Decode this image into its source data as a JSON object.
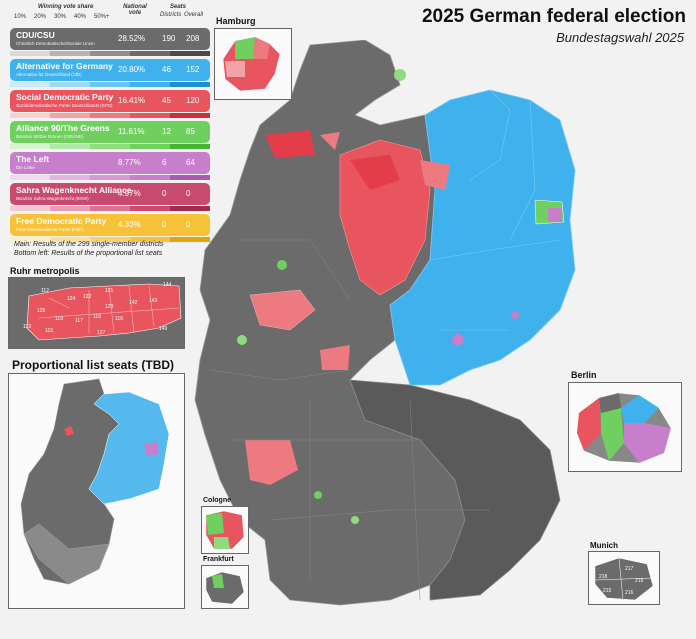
{
  "title": "2025 German federal election",
  "subtitle": "Bundestagswahl 2025",
  "legend": {
    "header_share": "Winning vote share",
    "header_national": "National vote",
    "header_seats": "Seats",
    "header_districts": "Districts",
    "header_overall": "Overall",
    "scale": [
      "10%",
      "20%",
      "30%",
      "40%",
      "50%+"
    ],
    "parties": [
      {
        "name": "CDU/CSU",
        "local": "Christlich Demokratische/Soziale Union",
        "share": "28.52%",
        "districts": "190",
        "overall": "208",
        "color": "#6b6b6b",
        "shades": [
          "#d9d9d9",
          "#b5b5b5",
          "#8f8f8f",
          "#6b6b6b",
          "#4a4a4a"
        ]
      },
      {
        "name": "Alternative for Germany",
        "local": "Alternative für Deutschland (AfD)",
        "share": "20.80%",
        "districts": "46",
        "overall": "152",
        "color": "#3fb1ec",
        "shades": [
          "#cdeafb",
          "#9fd7f6",
          "#6fc3f1",
          "#3fb1ec",
          "#1e90d0"
        ]
      },
      {
        "name": "Social Democratic Party",
        "local": "Sozialdemokratische Partei Deutschlands (SPD)",
        "share": "16.41%",
        "districts": "45",
        "overall": "120",
        "color": "#e8555e",
        "shades": [
          "#f9d0d2",
          "#f2a3a7",
          "#ec7a80",
          "#e8555e",
          "#c9303a"
        ]
      },
      {
        "name": "Alliance 90/The Greens",
        "local": "Bündnis 90/Die Grünen (GRÜNE)",
        "share": "11.61%",
        "districts": "12",
        "overall": "85",
        "color": "#6fcf5f",
        "shades": [
          "#d6f2d0",
          "#b1e6a6",
          "#8fdb80",
          "#6fcf5f",
          "#46b236"
        ]
      },
      {
        "name": "The Left",
        "local": "Die Linke",
        "share": "8.77%",
        "districts": "6",
        "overall": "64",
        "color": "#c77fcc",
        "shades": [
          "#efd9f0",
          "#dfb5e2",
          "#d399d8",
          "#c77fcc",
          "#a95bb0"
        ]
      },
      {
        "name": "Sahra Wagenknecht Alliance",
        "local": "Bündnis Sahra Wagenknecht (BSW)",
        "share": "4.97%",
        "districts": "0",
        "overall": "0",
        "color": "#c84a6e",
        "shades": [
          "#f0c9d4",
          "#e29fb3",
          "#d67392",
          "#c84a6e",
          "#a02c50"
        ]
      },
      {
        "name": "Free Democratic Party",
        "local": "Freie Demokratische Partei (FDP)",
        "share": "4.33%",
        "districts": "0",
        "overall": "0",
        "color": "#f7c238",
        "shades": [
          "#fdeec3",
          "#fbe197",
          "#f9d16a",
          "#f7c238",
          "#e0a50f"
        ]
      }
    ],
    "note_main": "Main: Results of the 299 single-member districts",
    "note_bottom": "Bottom left: Results of the proportional list seats"
  },
  "insets": {
    "ruhr": "Ruhr metropolis",
    "proportional": "Proportional list seats (TBD)",
    "hamburg": "Hamburg",
    "berlin": "Berlin",
    "cologne": "Cologne",
    "frankfurt": "Frankfurt",
    "munich": "Munich"
  },
  "ruhr_districts": [
    "112",
    "124",
    "122",
    "121",
    "144",
    "143",
    "142",
    "120",
    "125",
    "119",
    "117",
    "118",
    "116",
    "113",
    "115",
    "127",
    "149"
  ],
  "munich_districts": [
    "217",
    "218",
    "219",
    "215",
    "216"
  ],
  "colors": {
    "union": "#6b6b6b",
    "afd": "#3fb1ec",
    "spd": "#e8555e",
    "greens": "#6fcf5f",
    "left": "#c77fcc",
    "bg": "#f2f2f2"
  }
}
